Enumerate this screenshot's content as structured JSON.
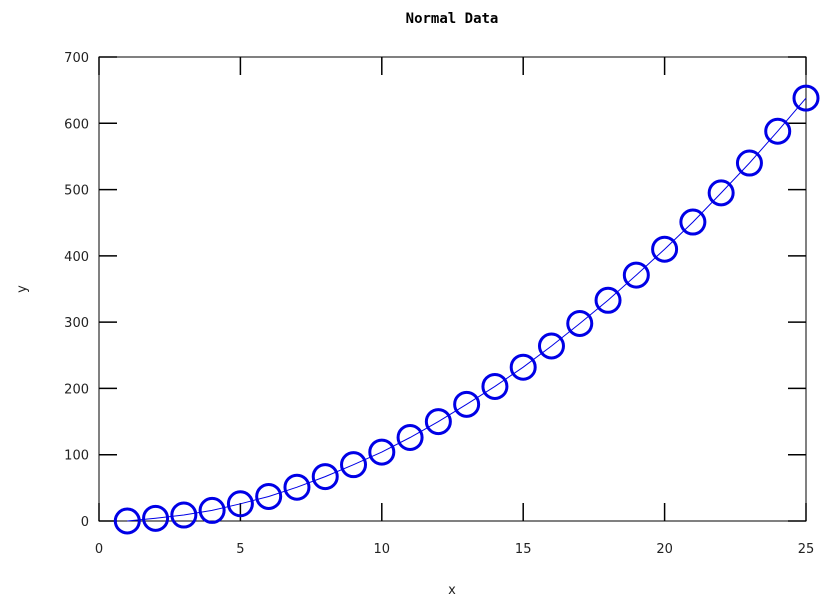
{
  "chart_data": {
    "type": "line",
    "title": "Normal Data",
    "xlabel": "x",
    "ylabel": "y",
    "xlim": [
      0,
      25
    ],
    "ylim": [
      0,
      700
    ],
    "xticks": [
      0,
      5,
      10,
      15,
      20,
      25
    ],
    "yticks": [
      0,
      100,
      200,
      300,
      400,
      500,
      600,
      700
    ],
    "grid": false,
    "legend": "none",
    "series": [
      {
        "color": "#0000e6",
        "marker": "circle-open",
        "x": [
          1,
          2,
          3,
          4,
          5,
          6,
          7,
          8,
          9,
          10,
          11,
          12,
          13,
          14,
          15,
          16,
          17,
          18,
          19,
          20,
          21,
          22,
          23,
          24,
          25
        ],
        "y": [
          0,
          4,
          9,
          16,
          26,
          37,
          51,
          67,
          85,
          104,
          126,
          150,
          176,
          203,
          232,
          264,
          298,
          333,
          371,
          410,
          451,
          495,
          540,
          588,
          638
        ]
      }
    ]
  }
}
